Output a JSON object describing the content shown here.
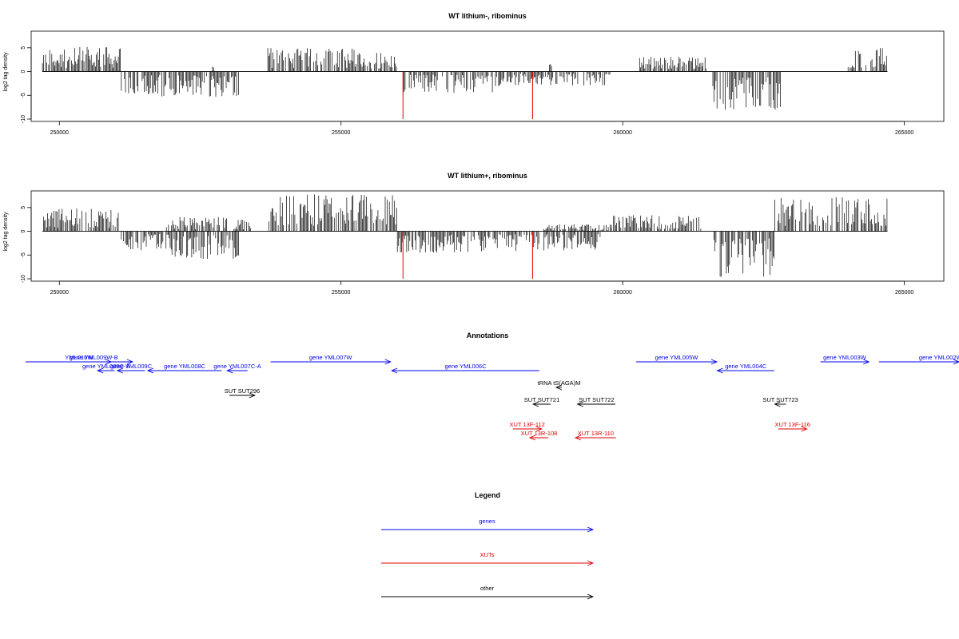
{
  "chart_data": [
    {
      "type": "bar",
      "title": "WT lithium-, ribominus",
      "ylabel": "log2 tag density",
      "xlim": [
        249500,
        265700
      ],
      "ylim": [
        -10.5,
        8.5
      ],
      "x_ticks": [
        250000,
        255000,
        260000,
        265000
      ],
      "x_tick_labels": [
        "250000",
        "255000",
        "260000",
        "265000"
      ],
      "y_ticks": [
        5,
        0,
        -5,
        -10
      ],
      "y_tick_labels": [
        "5",
        "0",
        "-5",
        "-10"
      ],
      "baseline_range": [
        249700,
        264700
      ],
      "positive_regions": [
        {
          "start": 249700,
          "end": 251100,
          "max": 5.2
        },
        {
          "start": 252700,
          "end": 252750,
          "max": 2.6
        },
        {
          "start": 253700,
          "end": 255300,
          "max": 5.0
        },
        {
          "start": 255300,
          "end": 256000,
          "max": 4.0
        },
        {
          "start": 258700,
          "end": 258800,
          "max": 1.6
        },
        {
          "start": 260300,
          "end": 261500,
          "max": 3.2
        },
        {
          "start": 264000,
          "end": 264700,
          "max": 5.2
        }
      ],
      "negative_regions": [
        {
          "start": 251100,
          "end": 251800,
          "max": 4.8
        },
        {
          "start": 251800,
          "end": 253200,
          "max": 5.5
        },
        {
          "start": 256100,
          "end": 257800,
          "max": 4.5
        },
        {
          "start": 257800,
          "end": 259800,
          "max": 3.0
        },
        {
          "start": 261600,
          "end": 262800,
          "max": 8.2
        }
      ],
      "highlight_spikes": [
        {
          "x": 256100,
          "value": -10,
          "color": "#e00000"
        },
        {
          "x": 258400,
          "value": -10,
          "color": "#e00000"
        }
      ]
    },
    {
      "type": "bar",
      "title": "WT lithium+, ribominus",
      "ylabel": "log2 tag density",
      "xlim": [
        249500,
        265700
      ],
      "ylim": [
        -10.5,
        8.5
      ],
      "x_ticks": [
        250000,
        255000,
        260000,
        265000
      ],
      "x_tick_labels": [
        "250000",
        "255000",
        "260000",
        "265000"
      ],
      "y_ticks": [
        5,
        0,
        -5,
        -10
      ],
      "y_tick_labels": [
        "5",
        "0",
        "-5",
        "-10"
      ],
      "baseline_range": [
        249700,
        264700
      ],
      "positive_regions": [
        {
          "start": 249700,
          "end": 251100,
          "max": 4.8
        },
        {
          "start": 251900,
          "end": 253000,
          "max": 3.0
        },
        {
          "start": 253100,
          "end": 253400,
          "max": 2.5
        },
        {
          "start": 253700,
          "end": 256000,
          "max": 7.8
        },
        {
          "start": 258600,
          "end": 259800,
          "max": 1.5
        },
        {
          "start": 259800,
          "end": 261400,
          "max": 3.4
        },
        {
          "start": 262700,
          "end": 264700,
          "max": 7.2
        }
      ],
      "negative_regions": [
        {
          "start": 251100,
          "end": 252000,
          "max": 4.0
        },
        {
          "start": 252000,
          "end": 253200,
          "max": 5.8
        },
        {
          "start": 256000,
          "end": 257700,
          "max": 4.6
        },
        {
          "start": 257700,
          "end": 259600,
          "max": 4.2
        },
        {
          "start": 261600,
          "end": 262700,
          "max": 10.0
        }
      ],
      "highlight_spikes": [
        {
          "x": 256100,
          "value": -10,
          "color": "#e00000"
        },
        {
          "x": 258400,
          "value": -10,
          "color": "#e00000"
        }
      ]
    }
  ],
  "annotations": {
    "title": "Annotations",
    "colors": {
      "genes": "#0000ee",
      "xuts": "#e00000",
      "other": "#000000"
    },
    "features": [
      {
        "label": "YML010W",
        "start": 249400,
        "end": 251300,
        "strand": "+",
        "row": 0,
        "kind": "gene"
      },
      {
        "label": "gene YML009W-B",
        "start": 250300,
        "end": 250920,
        "strand": "+",
        "row": 0,
        "kind": "gene"
      },
      {
        "label": "gene YML009C-A",
        "start": 250680,
        "end": 250980,
        "strand": "-",
        "row": 1,
        "kind": "gene"
      },
      {
        "label": "gene YML009C",
        "start": 251030,
        "end": 251520,
        "strand": "-",
        "row": 1,
        "kind": "gene"
      },
      {
        "label": "gene YML008C",
        "start": 251570,
        "end": 252880,
        "strand": "-",
        "row": 1,
        "kind": "gene"
      },
      {
        "label": "gene YML007C-A",
        "start": 252980,
        "end": 253340,
        "strand": "-",
        "row": 1,
        "kind": "gene"
      },
      {
        "label": "gene YML007W",
        "start": 253750,
        "end": 255880,
        "strand": "+",
        "row": 0,
        "kind": "gene"
      },
      {
        "label": "gene YML006C",
        "start": 255900,
        "end": 258520,
        "strand": "-",
        "row": 1,
        "kind": "gene"
      },
      {
        "label": "tRNA tS(AGA)M",
        "start": 258820,
        "end": 258920,
        "strand": "-",
        "row": 2,
        "kind": "other"
      },
      {
        "label": "SUT SUT296",
        "start": 253020,
        "end": 253470,
        "strand": "+",
        "row": 3,
        "kind": "other"
      },
      {
        "label": "SUT SUT721",
        "start": 258410,
        "end": 258720,
        "strand": "-",
        "row": 4,
        "kind": "other"
      },
      {
        "label": "SUT SUT722",
        "start": 259200,
        "end": 259870,
        "strand": "-",
        "row": 4,
        "kind": "other"
      },
      {
        "label": "XUT 13F-112",
        "start": 258050,
        "end": 258560,
        "strand": "+",
        "row": 5,
        "kind": "xut"
      },
      {
        "label": "XUT 13R-108",
        "start": 258350,
        "end": 258680,
        "strand": "-",
        "row": 6,
        "kind": "xut"
      },
      {
        "label": "XUT 13R-110",
        "start": 259160,
        "end": 259880,
        "strand": "-",
        "row": 6,
        "kind": "xut"
      },
      {
        "label": "gene YML005W",
        "start": 260240,
        "end": 261670,
        "strand": "+",
        "row": 0,
        "kind": "gene"
      },
      {
        "label": "gene YML004C",
        "start": 261680,
        "end": 262690,
        "strand": "-",
        "row": 1,
        "kind": "gene"
      },
      {
        "label": "SUT SUT723",
        "start": 262700,
        "end": 262900,
        "strand": "-",
        "row": 4,
        "kind": "other"
      },
      {
        "label": "XUT 13F-116",
        "start": 262760,
        "end": 263270,
        "strand": "+",
        "row": 5,
        "kind": "xut"
      },
      {
        "label": "gene YML003W",
        "start": 263510,
        "end": 264370,
        "strand": "+",
        "row": 0,
        "kind": "gene"
      },
      {
        "label": "gene YML002W",
        "start": 264550,
        "end": 266200,
        "strand": "+",
        "row": 0,
        "kind": "gene"
      }
    ]
  },
  "legend": {
    "title": "Legend",
    "items": [
      {
        "label": "genes",
        "color": "#0000ee"
      },
      {
        "label": "XUTs",
        "color": "#e00000"
      },
      {
        "label": "other",
        "color": "#000000"
      }
    ]
  }
}
